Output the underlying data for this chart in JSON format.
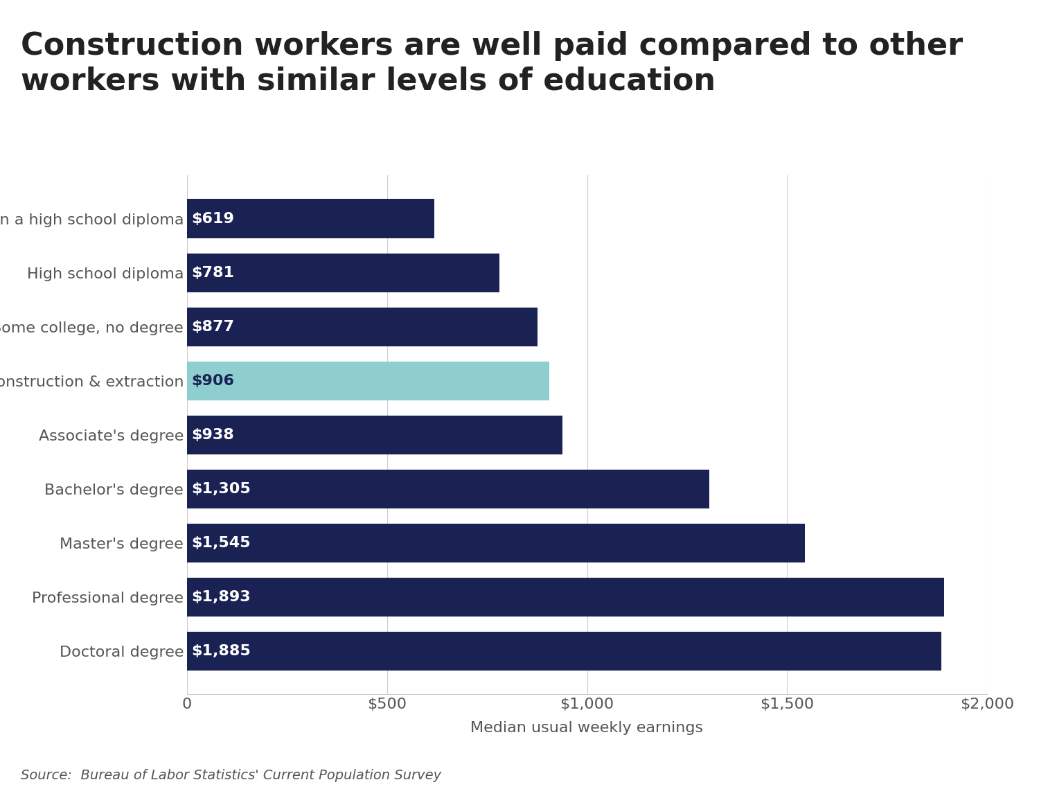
{
  "title": "Construction workers are well paid compared to other\nworkers with similar levels of education",
  "categories": [
    "Less than a high school diploma",
    "High school diploma",
    "Some college, no degree",
    "Construction & extraction",
    "Associate's degree",
    "Bachelor's degree",
    "Master's degree",
    "Professional degree",
    "Doctoral degree"
  ],
  "values": [
    619,
    781,
    877,
    906,
    938,
    1305,
    1545,
    1893,
    1885
  ],
  "labels": [
    "$619",
    "$781",
    "$877",
    "$906",
    "$938",
    "$1,305",
    "$1,545",
    "$1,893",
    "$1,885"
  ],
  "bar_colors": [
    "#1a2254",
    "#1a2254",
    "#1a2254",
    "#8ecece",
    "#1a2254",
    "#1a2254",
    "#1a2254",
    "#1a2254",
    "#1a2254"
  ],
  "xlabel": "Median usual weekly earnings",
  "xlim": [
    0,
    2000
  ],
  "xticks": [
    0,
    500,
    1000,
    1500,
    2000
  ],
  "xticklabels": [
    "0",
    "$500",
    "$1,000",
    "$1,500",
    "$2,000"
  ],
  "source": "Source:  Bureau of Labor Statistics' Current Population Survey",
  "background_color": "#ffffff",
  "title_fontsize": 32,
  "label_fontsize": 16,
  "tick_fontsize": 16,
  "xlabel_fontsize": 16,
  "source_fontsize": 14,
  "bar_label_color_dark": "#ffffff",
  "bar_label_color_light": "#1a2254",
  "title_color": "#222222",
  "tick_color": "#555555",
  "grid_color": "#cccccc"
}
